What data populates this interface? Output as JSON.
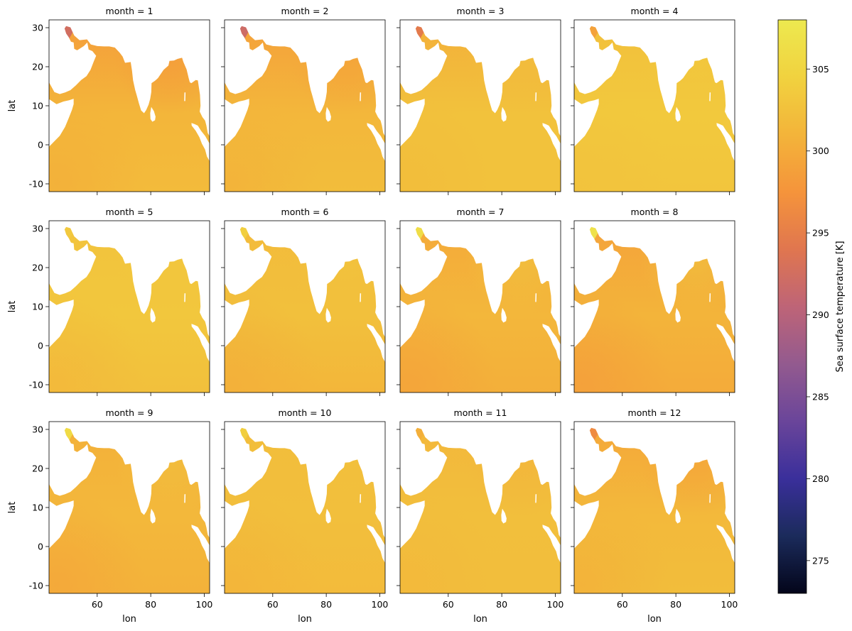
{
  "figure": {
    "panel_titles": [
      "month = 1",
      "month = 2",
      "month = 3",
      "month = 4",
      "month = 5",
      "month = 6",
      "month = 7",
      "month = 8",
      "month = 9",
      "month = 10",
      "month = 11",
      "month = 12"
    ],
    "xlabel": "lon",
    "ylabel": "lat",
    "colorbar_label": "Sea surface temperature [K]",
    "colormap": [
      "#03051a",
      "#1b2b5b",
      "#3a2f9b",
      "#6a459a",
      "#935a8f",
      "#be6477",
      "#e0764f",
      "#f5943b",
      "#f3b43a",
      "#f1d23f",
      "#ede94f"
    ]
  },
  "chart_data": {
    "type": "heatmap",
    "grid_layout": "3 rows x 4 columns, faceted by month",
    "x": {
      "label": "lon",
      "range": [
        42,
        102
      ],
      "ticks": [
        60,
        80,
        100
      ]
    },
    "y": {
      "label": "lat",
      "range": [
        -12,
        32
      ],
      "ticks": [
        -10,
        0,
        10,
        20,
        30
      ]
    },
    "colorbar": {
      "label": "Sea surface temperature [K]",
      "range": [
        273,
        308
      ],
      "ticks": [
        275,
        280,
        285,
        290,
        295,
        300,
        305
      ]
    },
    "months": [
      {
        "month": 1,
        "title": "month = 1",
        "base_sst": 301.2,
        "arabian_sea_north": 298.5,
        "red_sea_gulf": 292.5,
        "bay_of_bengal_north": 298.6,
        "south_region": 301.8,
        "southwest_corner": 300.6
      },
      {
        "month": 2,
        "title": "month = 2",
        "base_sst": 301.4,
        "arabian_sea_north": 298.8,
        "red_sea_gulf": 292.0,
        "bay_of_bengal_north": 299.4,
        "south_region": 302.0,
        "southwest_corner": 300.9
      },
      {
        "month": 3,
        "title": "month = 3",
        "base_sst": 302.6,
        "arabian_sea_north": 300.5,
        "red_sea_gulf": 294.5,
        "bay_of_bengal_north": 302.2,
        "south_region": 302.6,
        "southwest_corner": 302.0
      },
      {
        "month": 4,
        "title": "month = 4",
        "base_sst": 303.4,
        "arabian_sea_north": 302.3,
        "red_sea_gulf": 299.0,
        "bay_of_bengal_north": 303.3,
        "south_region": 303.0,
        "southwest_corner": 302.8
      },
      {
        "month": 5,
        "title": "month = 5",
        "base_sst": 303.2,
        "arabian_sea_north": 302.8,
        "red_sea_gulf": 303.5,
        "bay_of_bengal_north": 303.2,
        "south_region": 302.4,
        "southwest_corner": 301.6
      },
      {
        "month": 6,
        "title": "month = 6",
        "base_sst": 302.4,
        "arabian_sea_north": 301.8,
        "red_sea_gulf": 304.2,
        "bay_of_bengal_north": 302.8,
        "south_region": 301.2,
        "southwest_corner": 300.6
      },
      {
        "month": 7,
        "title": "month = 7",
        "base_sst": 301.4,
        "arabian_sea_north": 299.8,
        "red_sea_gulf": 306.2,
        "bay_of_bengal_north": 302.4,
        "south_region": 300.4,
        "southwest_corner": 299.3
      },
      {
        "month": 8,
        "title": "month = 8",
        "base_sst": 301.0,
        "arabian_sea_north": 299.0,
        "red_sea_gulf": 306.8,
        "bay_of_bengal_north": 302.2,
        "south_region": 300.0,
        "southwest_corner": 298.8
      },
      {
        "month": 9,
        "title": "month = 9",
        "base_sst": 301.5,
        "arabian_sea_north": 300.6,
        "red_sea_gulf": 305.8,
        "bay_of_bengal_north": 302.2,
        "south_region": 300.8,
        "southwest_corner": 299.7
      },
      {
        "month": 10,
        "title": "month = 10",
        "base_sst": 302.3,
        "arabian_sea_north": 302.0,
        "red_sea_gulf": 304.0,
        "bay_of_bengal_north": 302.4,
        "south_region": 301.8,
        "southwest_corner": 301.1
      },
      {
        "month": 11,
        "title": "month = 11",
        "base_sst": 302.3,
        "arabian_sea_north": 301.4,
        "red_sea_gulf": 300.5,
        "bay_of_bengal_north": 301.4,
        "south_region": 302.2,
        "southwest_corner": 301.6
      },
      {
        "month": 12,
        "title": "month = 12",
        "base_sst": 301.6,
        "arabian_sea_north": 299.6,
        "red_sea_gulf": 296.5,
        "bay_of_bengal_north": 299.6,
        "south_region": 302.0,
        "southwest_corner": 300.8
      }
    ]
  }
}
